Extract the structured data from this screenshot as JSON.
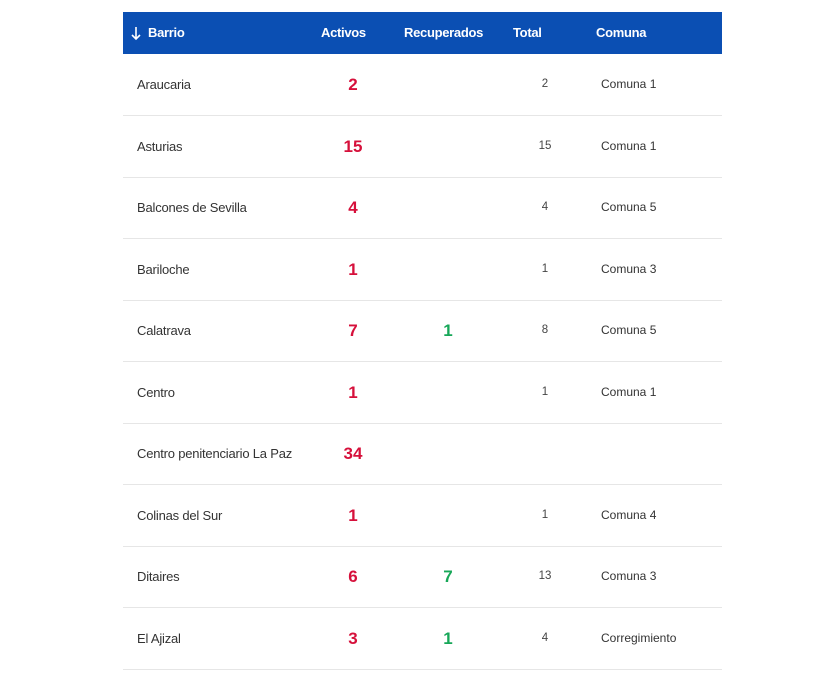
{
  "table": {
    "headers": [
      "Barrio",
      "Activos",
      "Recuperados",
      "Total",
      "Comuna"
    ],
    "rows": [
      [
        "Araucaria",
        2,
        null,
        2,
        "Comuna 1"
      ],
      [
        "Asturias",
        15,
        null,
        15,
        "Comuna 1"
      ],
      [
        "Balcones de Sevilla",
        4,
        null,
        4,
        "Comuna 5"
      ],
      [
        "Bariloche",
        1,
        null,
        1,
        "Comuna 3"
      ],
      [
        "Calatrava",
        7,
        1,
        8,
        "Comuna 5"
      ],
      [
        "Centro",
        1,
        null,
        1,
        "Comuna 1"
      ],
      [
        "Centro penitenciario La Paz",
        34,
        null,
        null,
        null
      ],
      [
        "Colinas del Sur",
        1,
        null,
        1,
        "Comuna 4"
      ],
      [
        "Ditaires",
        6,
        7,
        13,
        "Comuna 3"
      ],
      [
        "El Ajizal",
        3,
        1,
        4,
        "Corregimiento"
      ]
    ]
  }
}
